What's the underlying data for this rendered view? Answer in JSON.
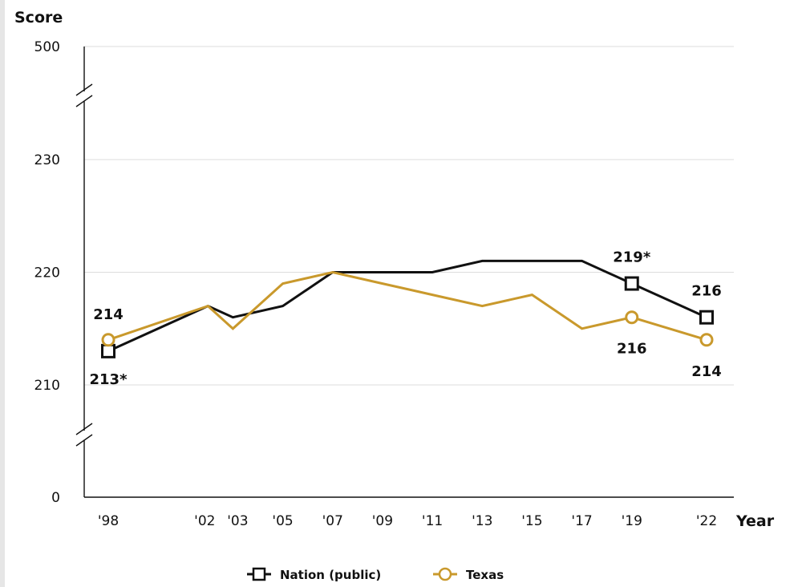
{
  "chart_data": {
    "type": "line",
    "ylabel": "Score",
    "xlabel": "Year",
    "y_ticks": [
      {
        "value": 500,
        "label": "500"
      },
      {
        "value": 230,
        "label": "230"
      },
      {
        "value": 220,
        "label": "220"
      },
      {
        "value": 210,
        "label": "210"
      },
      {
        "value": 0,
        "label": "0"
      }
    ],
    "y_axis_breaks": [
      "between 230 and 500",
      "between 0 and 210"
    ],
    "x": [
      1998,
      2002,
      2003,
      2005,
      2007,
      2009,
      2011,
      2013,
      2015,
      2017,
      2019,
      2022
    ],
    "x_labels": [
      "'98",
      "'02",
      "'03",
      "'05",
      "'07",
      "'09",
      "'11",
      "'13",
      "'15",
      "'17",
      "'19",
      "'22"
    ],
    "series": [
      {
        "name": "Nation (public)",
        "color": "#111111",
        "marker": "square",
        "values": [
          213,
          217,
          216,
          217,
          220,
          220,
          220,
          221,
          221,
          221,
          219,
          216
        ],
        "marked_points": [
          {
            "x": 1998,
            "value": 213,
            "label": "213*"
          },
          {
            "x": 2019,
            "value": 219,
            "label": "219*"
          },
          {
            "x": 2022,
            "value": 216,
            "label": "216"
          }
        ]
      },
      {
        "name": "Texas",
        "color": "#c9992c",
        "marker": "circle",
        "values": [
          214,
          217,
          215,
          219,
          220,
          219,
          218,
          217,
          218,
          215,
          216,
          214
        ],
        "marked_points": [
          {
            "x": 1998,
            "value": 214,
            "label": "214"
          },
          {
            "x": 2019,
            "value": 216,
            "label": "216"
          },
          {
            "x": 2022,
            "value": 214,
            "label": "214"
          }
        ]
      }
    ],
    "grid": true,
    "legend_position": "bottom-center"
  }
}
